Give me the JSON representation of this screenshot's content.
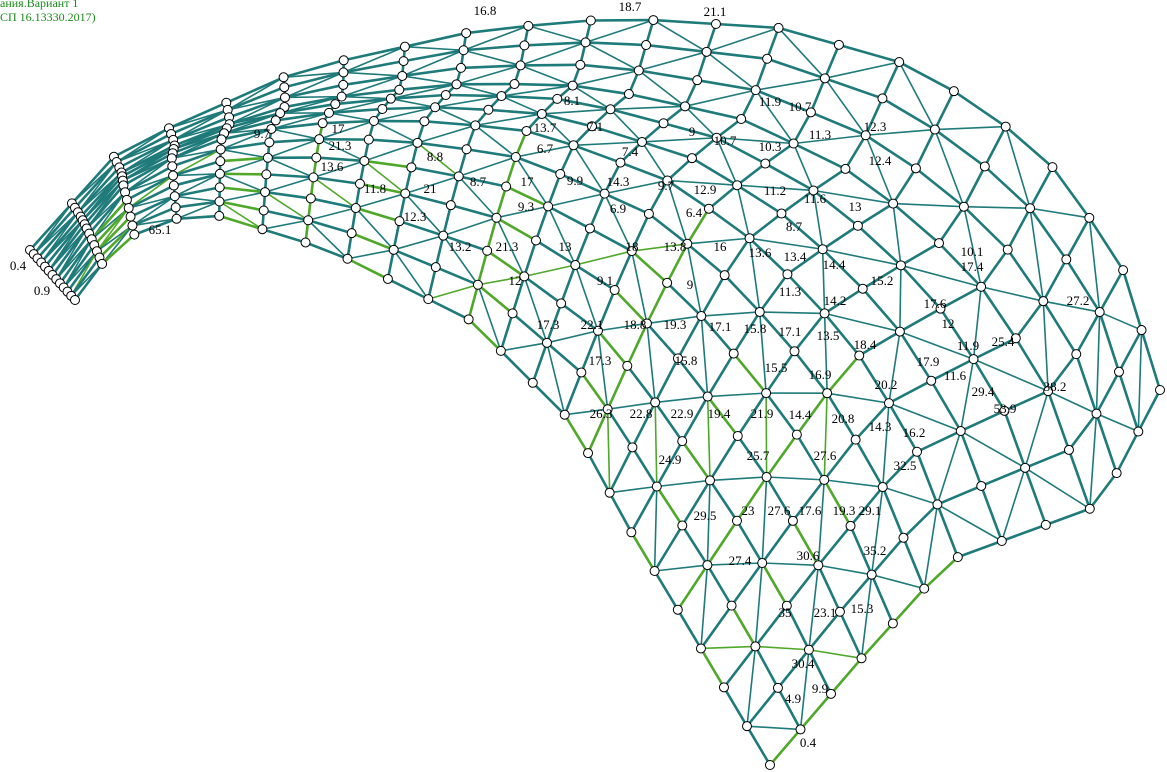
{
  "header": {
    "line1": "ания.Вариант 1",
    "line2": "СП 16.13330.2017)"
  },
  "member_labels": [
    9.7,
    17,
    6.7,
    7.4,
    9,
    10.7,
    10.3,
    11.3,
    13.6,
    8.8,
    11.8,
    21,
    8.7,
    17,
    9.9,
    14.3,
    9.7,
    12.9,
    11.2,
    11.6,
    12.3,
    9.3,
    6.9,
    6.4,
    8.7,
    13.2,
    21.3,
    13,
    18,
    13.8,
    16,
    13.6,
    13.4,
    14.4,
    12,
    9.1,
    9,
    11.3,
    14.2,
    17.3,
    22.1,
    18.8,
    19.3,
    17.1,
    15.8,
    17.1,
    13.5,
    18.4,
    17.3,
    15.8,
    15.5,
    16.9,
    20.2,
    26.3,
    22.8,
    22.9,
    19.4,
    21.9,
    14.4,
    20.8,
    14.3,
    16.2,
    24.9,
    25.7,
    27.6,
    32.5,
    29.5,
    23,
    27.6,
    17.6,
    19.3,
    29.1,
    27.4,
    30.6,
    35.2,
    35,
    23.1,
    15.3,
    30.4,
    4.9,
    9.9,
    0.4,
    65.1,
    0.9,
    0.4,
    8.1,
    7.1,
    13.7,
    11.9,
    10.7,
    12.3,
    12.4,
    13,
    15.2,
    17.6,
    12,
    11.9,
    17.9,
    11.6,
    29.4,
    53.9,
    25.4,
    38.2,
    27.2,
    10.1,
    17.4,
    16.8,
    18.7,
    21.1,
    21.3
  ]
}
